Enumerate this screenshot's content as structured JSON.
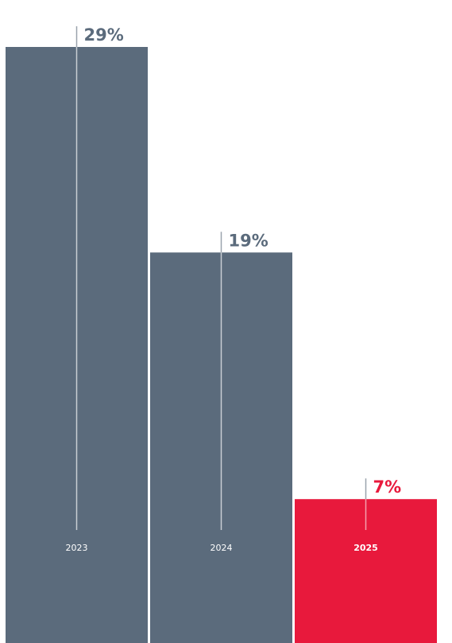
{
  "chart_data": {
    "type": "bar",
    "categories": [
      "2023",
      "2024",
      "2025"
    ],
    "values": [
      29,
      19,
      7
    ],
    "value_labels": [
      "29%",
      "19%",
      "7%"
    ],
    "unit": "%",
    "title": "",
    "xlabel": "",
    "ylabel": "",
    "ylim": [
      0,
      29
    ],
    "grid": false,
    "legend": "none",
    "colors": {
      "bar": "#5b6b7c",
      "highlight_bar": "#e8193c",
      "value_label": "#5b6b7c",
      "highlight_value_label": "#e8193c",
      "leader_line_on_bar": "#c9ced4",
      "leader_line_above_bar": "#9aa3ad",
      "category_label": "#ffffff"
    },
    "highlight_index": 2
  }
}
